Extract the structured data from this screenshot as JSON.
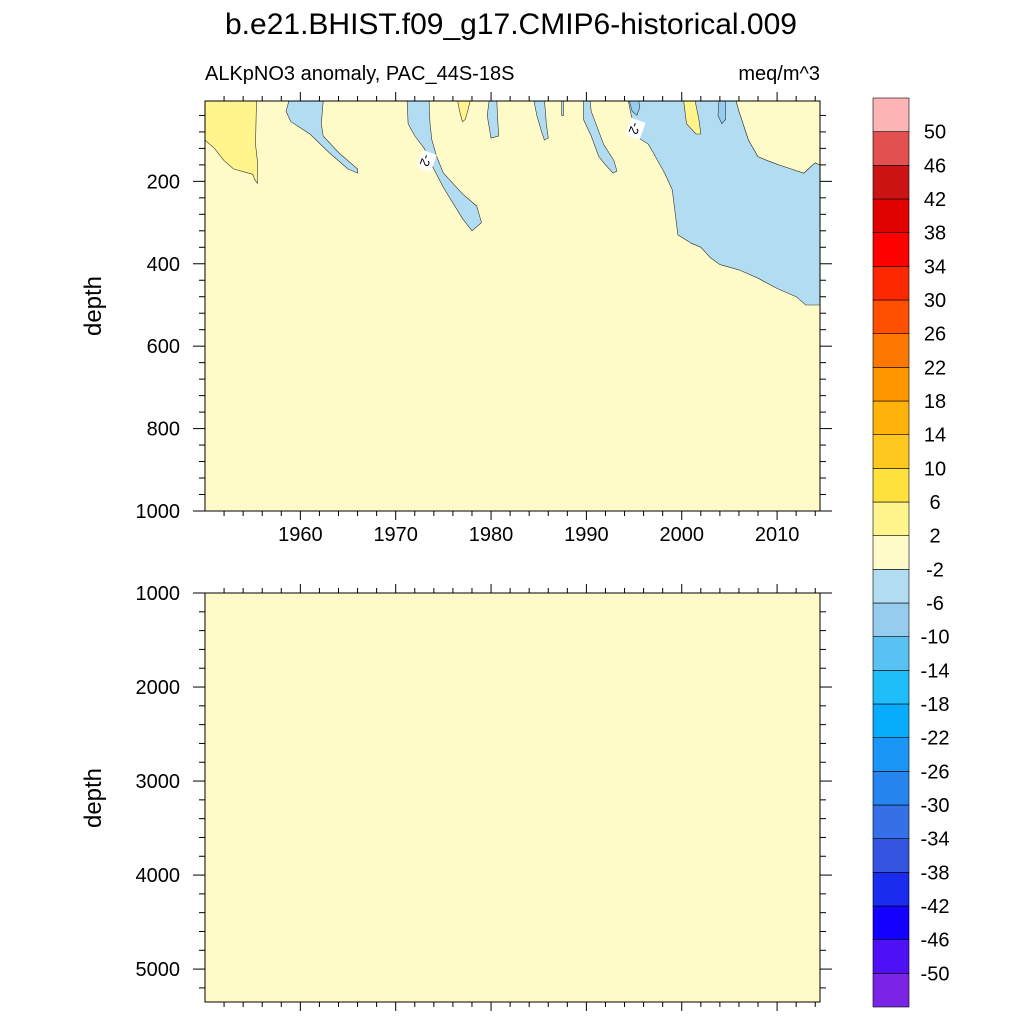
{
  "figure": {
    "title": "b.e21.BHIST.f09_g17.CMIP6-historical.009",
    "left_subtitle": "ALKpNO3 anomaly, PAC_44S-18S",
    "right_subtitle": "meq/m^3"
  },
  "chart_data": [
    {
      "type": "heatmap",
      "panel": "upper",
      "xlabel": "",
      "ylabel": "depth",
      "xlim": [
        1950,
        2014.5
      ],
      "ylim": [
        1000,
        5
      ],
      "y_reversed": true,
      "xticks": [
        1960,
        1970,
        1980,
        1990,
        2000,
        2010
      ],
      "xtick_labels": [
        "1960",
        "1970",
        "1980",
        "1990",
        "2000",
        "2010"
      ],
      "yticks": [
        200,
        400,
        600,
        800,
        1000
      ],
      "ytick_labels": [
        "200",
        "400",
        "600",
        "800",
        "1000"
      ],
      "background_level": "-2 to 2",
      "contour_labels": [
        {
          "text": "-2",
          "x": 1973.2,
          "y": 150,
          "angle": -70
        },
        {
          "text": "-2",
          "x": 1995.1,
          "y": 72,
          "angle": -70
        }
      ],
      "regions": [
        {
          "level": "2 to 6",
          "color": "#fff58c",
          "points": [
            [
              1950,
              100
            ],
            [
              1951,
              120
            ],
            [
              1952,
              150
            ],
            [
              1953,
              170
            ],
            [
              1955,
              183
            ],
            [
              1955.2,
              195
            ],
            [
              1955.5,
              205
            ],
            [
              1955.5,
              150
            ],
            [
              1955.3,
              110
            ],
            [
              1955.4,
              5
            ],
            [
              1950,
              5
            ]
          ]
        },
        {
          "level": "-6 to -2",
          "color": "#b2dcf2",
          "points": [
            [
              1958.8,
              5
            ],
            [
              1958.5,
              30
            ],
            [
              1959,
              55
            ],
            [
              1961,
              85
            ],
            [
              1963,
              130
            ],
            [
              1965,
              170
            ],
            [
              1966,
              180
            ],
            [
              1966,
              170
            ],
            [
              1964,
              130
            ],
            [
              1962.4,
              90
            ],
            [
              1962.2,
              60
            ],
            [
              1962.4,
              5
            ]
          ]
        },
        {
          "level": "-6 to -2",
          "color": "#b2dcf2",
          "points": [
            [
              1971.2,
              5
            ],
            [
              1971.3,
              60
            ],
            [
              1972,
              90
            ],
            [
              1973,
              120
            ],
            [
              1974,
              170
            ],
            [
              1975,
              215
            ],
            [
              1977,
              290
            ],
            [
              1978,
              320
            ],
            [
              1979,
              300
            ],
            [
              1978.5,
              260
            ],
            [
              1977,
              230
            ],
            [
              1975,
              180
            ],
            [
              1974.3,
              140
            ],
            [
              1973.8,
              100
            ],
            [
              1973.6,
              60
            ],
            [
              1973.5,
              5
            ]
          ]
        },
        {
          "level": "2 to 6",
          "color": "#fff58c",
          "points": [
            [
              1976.5,
              5
            ],
            [
              1976.7,
              30
            ],
            [
              1977,
              55
            ],
            [
              1977.3,
              50
            ],
            [
              1977.6,
              25
            ],
            [
              1977.8,
              5
            ]
          ]
        },
        {
          "level": "-6 to -2",
          "color": "#b2dcf2",
          "points": [
            [
              1979.8,
              5
            ],
            [
              1979.6,
              40
            ],
            [
              1980,
              95
            ],
            [
              1980.8,
              90
            ],
            [
              1980.7,
              50
            ],
            [
              1980.6,
              5
            ]
          ]
        },
        {
          "level": "-6 to -2",
          "color": "#b2dcf2",
          "points": [
            [
              1984.5,
              5
            ],
            [
              1984.8,
              40
            ],
            [
              1985.3,
              80
            ],
            [
              1985.6,
              100
            ],
            [
              1986,
              95
            ],
            [
              1985.8,
              60
            ],
            [
              1985.7,
              30
            ],
            [
              1985.6,
              5
            ]
          ]
        },
        {
          "level": "-6 to -2",
          "color": "#b2dcf2",
          "points": [
            [
              1987.4,
              5
            ],
            [
              1987.4,
              40
            ],
            [
              1987.6,
              40
            ],
            [
              1987.6,
              5
            ]
          ]
        },
        {
          "level": "-6 to -2",
          "color": "#b2dcf2",
          "points": [
            [
              1989.7,
              5
            ],
            [
              1989.7,
              50
            ],
            [
              1990.5,
              90
            ],
            [
              1991.3,
              140
            ],
            [
              1992,
              160
            ],
            [
              1992.8,
              180
            ],
            [
              1993.2,
              175
            ],
            [
              1992.9,
              150
            ],
            [
              1991.8,
              110
            ],
            [
              1991,
              60
            ],
            [
              1990.5,
              30
            ],
            [
              1990.4,
              5
            ]
          ]
        },
        {
          "level": "-6 to -2",
          "color": "#b2dcf2",
          "points": [
            [
              1994.4,
              5
            ],
            [
              1994.7,
              40
            ],
            [
              1995.5,
              95
            ],
            [
              1996.5,
              110
            ],
            [
              1997,
              130
            ],
            [
              1998.2,
              180
            ],
            [
              1999,
              220
            ],
            [
              1999.6,
              330
            ],
            [
              2001,
              350
            ],
            [
              2002,
              360
            ],
            [
              2003,
              385
            ],
            [
              2004,
              402
            ],
            [
              2006,
              415
            ],
            [
              2008,
              435
            ],
            [
              2010,
              460
            ],
            [
              2012,
              480
            ],
            [
              2013,
              500
            ],
            [
              2014.5,
              500
            ],
            [
              2014.5,
              160
            ],
            [
              2014,
              155
            ],
            [
              2013.5,
              165
            ],
            [
              2012.8,
              180
            ],
            [
              2011.5,
              170
            ],
            [
              2010.2,
              160
            ],
            [
              2009,
              150
            ],
            [
              2008,
              140
            ],
            [
              2007,
              100
            ],
            [
              2006,
              30
            ],
            [
              2005.7,
              5
            ]
          ]
        },
        {
          "level": "2 to 6",
          "color": "#fff58c",
          "points": [
            [
              2000.2,
              5
            ],
            [
              2000.5,
              60
            ],
            [
              2001.5,
              85
            ],
            [
              2002,
              85
            ],
            [
              2001.8,
              50
            ],
            [
              2001.4,
              5
            ]
          ]
        },
        {
          "level": "-10 to -6",
          "color": "#96cdee",
          "points": [
            [
              1994.5,
              5
            ],
            [
              1994.8,
              30
            ],
            [
              1995.3,
              40
            ],
            [
              1995.6,
              20
            ],
            [
              1995.5,
              5
            ]
          ]
        },
        {
          "level": "-10 to -6",
          "color": "#96cdee",
          "points": [
            [
              2003.9,
              5
            ],
            [
              2003.8,
              40
            ],
            [
              2004.2,
              60
            ],
            [
              2004.6,
              50
            ],
            [
              2004.6,
              5
            ]
          ]
        },
        {
          "level": "-2 to 2",
          "color": "#fffbc8",
          "points": [
            [
              2005.7,
              5
            ],
            [
              2006,
              30
            ],
            [
              2007,
              100
            ],
            [
              2008,
              140
            ],
            [
              2009,
              150
            ],
            [
              2010.2,
              160
            ],
            [
              2011.5,
              170
            ],
            [
              2012.8,
              180
            ],
            [
              2013.5,
              165
            ],
            [
              2014,
              155
            ],
            [
              2014.5,
              160
            ],
            [
              2014.5,
              5
            ]
          ]
        }
      ]
    },
    {
      "type": "heatmap",
      "panel": "lower",
      "xlabel": "",
      "ylabel": "depth",
      "xlim": [
        1950,
        2014.5
      ],
      "ylim": [
        5350,
        1000
      ],
      "y_reversed": true,
      "yticks": [
        1000,
        2000,
        3000,
        4000,
        5000
      ],
      "ytick_labels": [
        "1000",
        "2000",
        "3000",
        "4000",
        "5000"
      ],
      "background_level": "-2 to 2",
      "regions": []
    }
  ],
  "colorbar": {
    "levels": [
      {
        "color": "#7a24e6",
        "label": "-50"
      },
      {
        "color": "#5010f5",
        "label": "-46"
      },
      {
        "color": "#1400ff",
        "label": "-42"
      },
      {
        "color": "#1a2cf0",
        "label": "-38"
      },
      {
        "color": "#3554e0",
        "label": "-34"
      },
      {
        "color": "#3570e6",
        "label": "-30"
      },
      {
        "color": "#2584ee",
        "label": "-26"
      },
      {
        "color": "#1a96f7",
        "label": "-22"
      },
      {
        "color": "#07acfc",
        "label": "-18"
      },
      {
        "color": "#1ebdfa",
        "label": "-14"
      },
      {
        "color": "#58c2f2",
        "label": "-10"
      },
      {
        "color": "#96cdee",
        "label": "-6"
      },
      {
        "color": "#b2dcf2",
        "label": "-2"
      },
      {
        "color": "#fffbc8",
        "label": "2"
      },
      {
        "color": "#fff58c",
        "label": "6"
      },
      {
        "color": "#fee13c",
        "label": "10"
      },
      {
        "color": "#fec81e",
        "label": "14"
      },
      {
        "color": "#feb20a",
        "label": "18"
      },
      {
        "color": "#fe9600",
        "label": "22"
      },
      {
        "color": "#fe7800",
        "label": "26"
      },
      {
        "color": "#fe5000",
        "label": "30"
      },
      {
        "color": "#fe2800",
        "label": "34"
      },
      {
        "color": "#ff0000",
        "label": "38"
      },
      {
        "color": "#e00000",
        "label": "42"
      },
      {
        "color": "#cc1414",
        "label": "46"
      },
      {
        "color": "#e25050",
        "label": "50"
      },
      {
        "color": "#fcb4b4",
        "label": ""
      }
    ]
  }
}
